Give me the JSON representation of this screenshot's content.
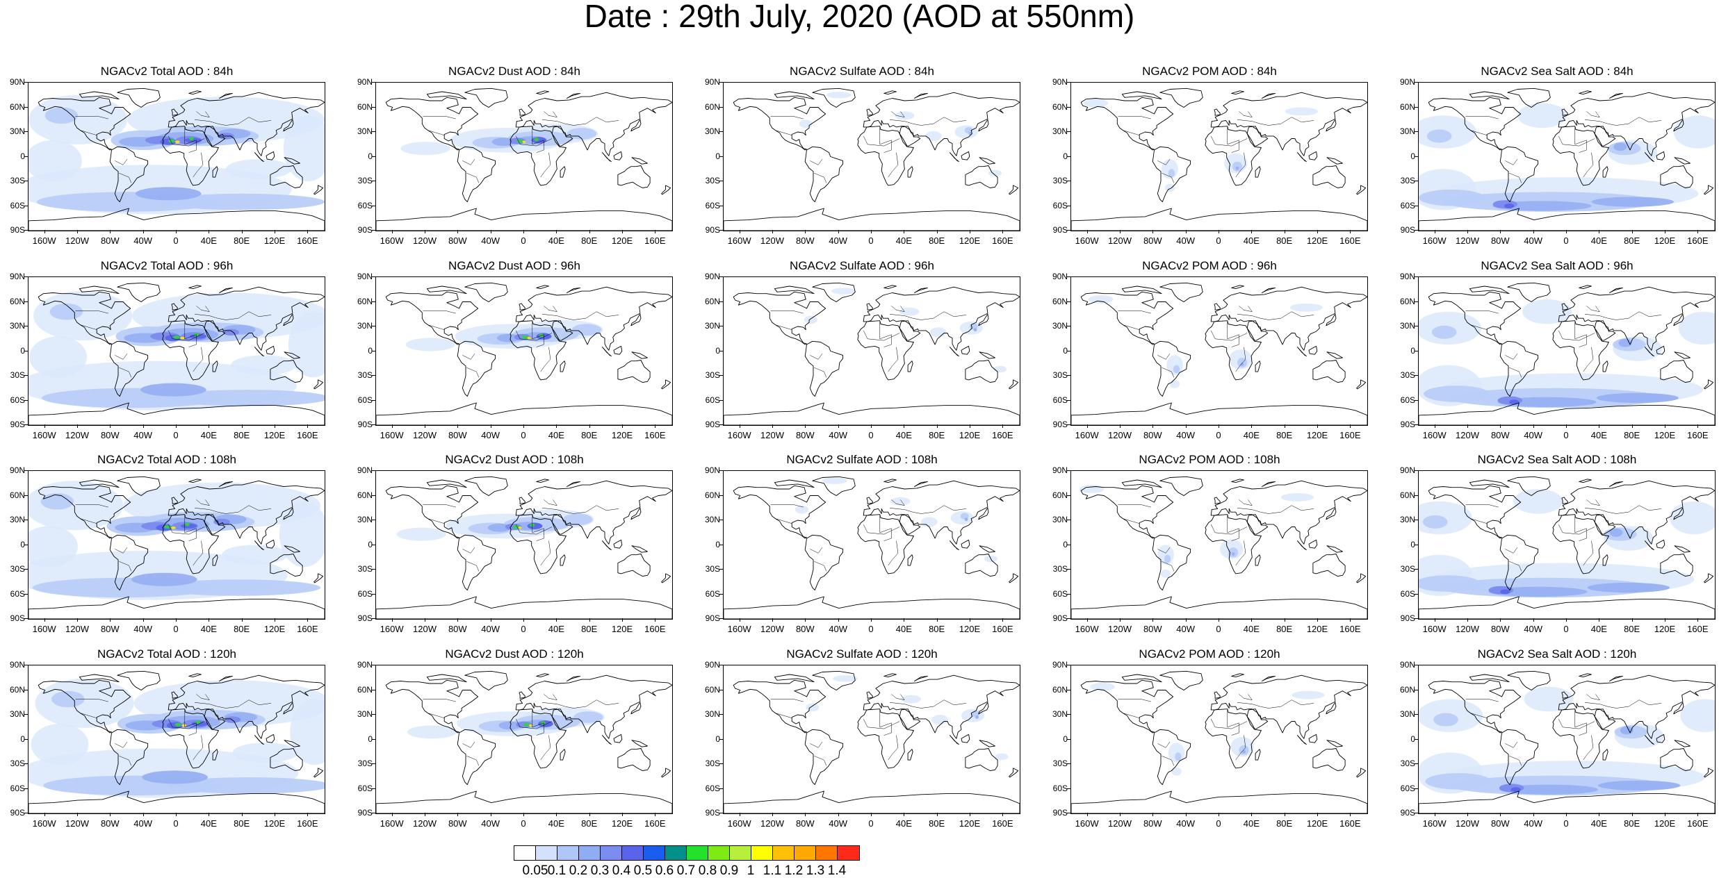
{
  "title": "Date : 29th July, 2020 (AOD at 550nm)",
  "lat_labels": [
    "90N",
    "60N",
    "30N",
    "0",
    "30S",
    "60S",
    "90S"
  ],
  "lon_labels": [
    "160W",
    "120W",
    "80W",
    "40W",
    "0",
    "40E",
    "80E",
    "120E",
    "160E"
  ],
  "columns": [
    {
      "species": "Total AOD",
      "pattern": "total",
      "colors": [
        "#dbe7fc",
        "#b8cdf8",
        "#97b0f2",
        "#7a8aee",
        "#5866e8",
        "#1d5fe8",
        "#34d23f",
        "#ffe512"
      ]
    },
    {
      "species": "Dust AOD",
      "pattern": "dust",
      "colors": [
        "#dbe7fc",
        "#b8cdf8",
        "#97b0f2",
        "#7a8aee",
        "#5866e8",
        "#1d5fe8",
        "#34d23f",
        "#ffe512"
      ]
    },
    {
      "species": "Sulfate AOD",
      "pattern": "sulfate",
      "colors": [
        "#dbe7fc",
        "#b8cdf8",
        "#97b0f2"
      ]
    },
    {
      "species": "POM AOD",
      "pattern": "pom",
      "colors": [
        "#dbe7fc",
        "#b8cdf8",
        "#97b0f2"
      ]
    },
    {
      "species": "Sea Salt AOD",
      "pattern": "seasalt",
      "colors": [
        "#dbe7fc",
        "#b8cdf8",
        "#97b0f2",
        "#7a8aee",
        "#5866e8"
      ]
    }
  ],
  "panels": [
    {
      "title": "NGACv2 Total AOD : 84h"
    },
    {
      "title": "NGACv2 Dust AOD : 84h"
    },
    {
      "title": "NGACv2 Sulfate AOD : 84h"
    },
    {
      "title": "NGACv2 POM AOD : 84h"
    },
    {
      "title": "NGACv2 Sea Salt AOD : 84h"
    },
    {
      "title": "NGACv2 Total AOD : 96h"
    },
    {
      "title": "NGACv2 Dust AOD : 96h"
    },
    {
      "title": "NGACv2 Sulfate AOD : 96h"
    },
    {
      "title": "NGACv2 POM AOD : 96h"
    },
    {
      "title": "NGACv2 Sea Salt AOD : 96h"
    },
    {
      "title": "NGACv2 Total AOD : 108h"
    },
    {
      "title": "NGACv2 Dust AOD : 108h"
    },
    {
      "title": "NGACv2 Sulfate AOD : 108h"
    },
    {
      "title": "NGACv2 POM AOD : 108h"
    },
    {
      "title": "NGACv2 Sea Salt AOD : 108h"
    },
    {
      "title": "NGACv2 Total AOD : 120h"
    },
    {
      "title": "NGACv2 Dust AOD : 120h"
    },
    {
      "title": "NGACv2 Sulfate AOD : 120h"
    },
    {
      "title": "NGACv2 POM AOD : 120h"
    },
    {
      "title": "NGACv2 Sea Salt  AOD : 120h"
    }
  ],
  "colorbar": {
    "colors": [
      "#ffffff",
      "#d3e1fb",
      "#b0c6f7",
      "#8fadf3",
      "#7b8df0",
      "#5a63ea",
      "#1a5ef0",
      "#03908a",
      "#24e12c",
      "#7eeb15",
      "#b7ef3c",
      "#ffff00",
      "#ffc107",
      "#ffaa00",
      "#ff7700",
      "#ff2a1a"
    ],
    "labels": [
      "0.05",
      "0.1",
      "0.2",
      "0.3",
      "0.4",
      "0.5",
      "0.6",
      "0.7",
      "0.8",
      "0.9",
      "1",
      "1.1",
      "1.2",
      "1.3",
      "1.4"
    ]
  }
}
